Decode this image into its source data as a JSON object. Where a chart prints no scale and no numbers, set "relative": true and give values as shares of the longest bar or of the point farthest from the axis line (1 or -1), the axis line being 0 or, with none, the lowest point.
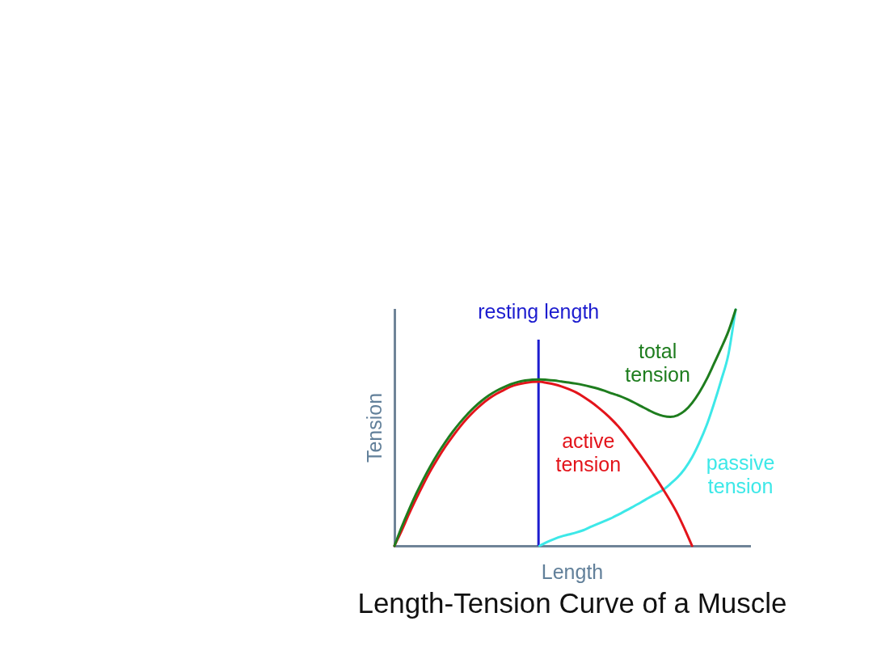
{
  "chart_data": {
    "type": "line",
    "title": "Length-Tension Curve of a Muscle",
    "xlabel": "Length",
    "ylabel": "Tension",
    "relative": true,
    "categories": [
      null,
      null,
      null,
      null,
      null,
      null,
      null,
      null,
      null,
      null,
      null,
      null,
      null,
      null,
      null,
      null,
      null,
      null,
      null,
      null,
      null,
      null,
      null,
      null,
      null,
      null,
      null,
      null,
      null,
      null,
      null,
      null,
      null,
      null,
      null,
      null,
      null,
      null,
      null,
      null,
      null,
      null,
      null,
      null,
      null,
      null,
      null,
      null,
      null,
      null
    ],
    "series": [
      {
        "name": "total tension",
        "color": "#1e7d1e",
        "values": [
          0,
          0.08,
          0.153,
          0.221,
          0.283,
          0.34,
          0.392,
          0.439,
          0.482,
          0.521,
          0.556,
          0.587,
          0.614,
          0.637,
          0.656,
          0.671,
          0.684,
          0.694,
          0.7,
          0.704,
          0.705,
          0.703,
          0.7,
          0.696,
          0.692,
          0.687,
          0.681,
          0.674,
          0.666,
          0.656,
          0.645,
          0.635,
          0.622,
          0.607,
          0.591,
          0.575,
          0.56,
          0.55,
          0.546,
          0.553,
          0.572,
          0.605,
          0.65,
          0.705,
          0.77,
          0.837,
          0.908,
          1,
          null,
          null
        ]
      },
      {
        "name": "active tension",
        "color": "#e3141b",
        "values": [
          0,
          0.065,
          0.135,
          0.2,
          0.262,
          0.32,
          0.372,
          0.42,
          0.463,
          0.503,
          0.539,
          0.571,
          0.599,
          0.623,
          0.643,
          0.659,
          0.674,
          0.684,
          0.69,
          0.694,
          0.695,
          0.69,
          0.684,
          0.675,
          0.664,
          0.65,
          0.632,
          0.611,
          0.588,
          0.562,
          0.533,
          0.5,
          0.462,
          0.42,
          0.378,
          0.334,
          0.288,
          0.24,
          0.19,
          0.135,
          0.07,
          0,
          null,
          null,
          null,
          null,
          null,
          null,
          null,
          null
        ]
      },
      {
        "name": "passive tension",
        "color": "#3de8e8",
        "values": [
          null,
          null,
          null,
          null,
          null,
          null,
          null,
          null,
          null,
          null,
          null,
          null,
          null,
          null,
          null,
          null,
          null,
          null,
          null,
          null,
          0,
          0.016,
          0.029,
          0.04,
          0.048,
          0.056,
          0.066,
          0.08,
          0.093,
          0.106,
          0.119,
          0.135,
          0.151,
          0.168,
          0.185,
          0.203,
          0.22,
          0.237,
          0.262,
          0.29,
          0.327,
          0.375,
          0.437,
          0.51,
          0.6,
          0.7,
          0.81,
          1,
          null,
          null
        ]
      }
    ],
    "annotations": [
      "resting length"
    ]
  }
}
